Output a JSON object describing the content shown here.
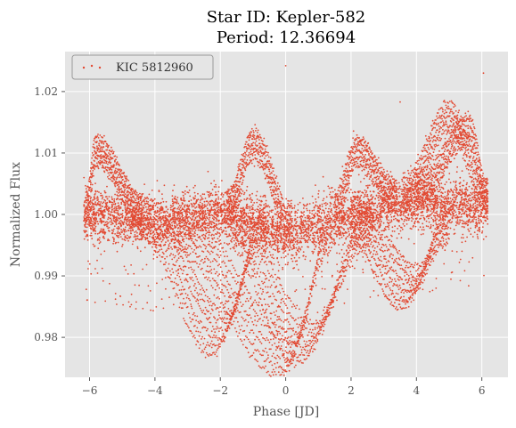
{
  "chart_data": {
    "type": "scatter",
    "title_line1": "Star ID: Kepler-582",
    "title_line2": "Period: 12.36694",
    "xlabel": "Phase [JD]",
    "ylabel": "Normalized Flux",
    "xlim": [
      -6.75,
      6.8
    ],
    "ylim": [
      0.9735,
      1.0265
    ],
    "xticks": [
      -6,
      -4,
      -2,
      0,
      2,
      4,
      6
    ],
    "yticks": [
      0.98,
      0.99,
      1.0,
      1.01,
      1.02
    ],
    "xtick_labels": [
      "−6",
      "−4",
      "−2",
      "0",
      "2",
      "4",
      "6"
    ],
    "ytick_labels": [
      "0.98",
      "0.99",
      "1.00",
      "1.01",
      "1.02"
    ],
    "grid": true,
    "legend_position": "top-left",
    "series": [
      {
        "name": "KIC 5812960",
        "color": "#E24A33",
        "marker": "dot",
        "x_range": [
          -6.18,
          6.18
        ],
        "band_center": [
          [
            -6.0,
            1.0
          ],
          [
            -4.0,
            0.9985
          ],
          [
            -2.0,
            1.0
          ],
          [
            -1.0,
            0.9985
          ],
          [
            0.0,
            0.9965
          ],
          [
            1.0,
            0.998
          ],
          [
            2.0,
            1.0
          ],
          [
            4.0,
            1.002
          ],
          [
            6.0,
            1.001
          ]
        ],
        "band_halfwidth_typical": 0.004,
        "notable_points": [
          {
            "x": 0.0,
            "y": 1.0242
          },
          {
            "x": 6.05,
            "y": 1.023
          },
          {
            "x": 3.5,
            "y": 1.0183
          },
          {
            "x": -6.1,
            "y": 0.9878
          },
          {
            "x": 4.6,
            "y": 0.988
          },
          {
            "x": 0.05,
            "y": 0.9762
          }
        ],
        "dip_trails": [
          {
            "x_start": -4.4,
            "x_end": -0.6,
            "y_start": 0.9995,
            "y_min": 0.9805,
            "x_min": -2.0
          },
          {
            "x_start": -3.4,
            "x_end": 1.4,
            "y_start": 0.9975,
            "y_min": 0.977,
            "x_min": 0.1
          },
          {
            "x_start": -1.8,
            "x_end": 2.6,
            "y_start": 0.9985,
            "y_min": 0.979,
            "x_min": 0.6
          },
          {
            "x_start": 2.0,
            "x_end": 5.0,
            "y_start": 0.999,
            "y_min": 0.988,
            "x_min": 3.8
          }
        ],
        "bump_trails": [
          {
            "x_start": -6.1,
            "x_end": -4.4,
            "y_peak": 1.0125,
            "x_peak": -5.8
          },
          {
            "x_start": -1.8,
            "x_end": 0.2,
            "y_peak": 1.0135,
            "x_peak": -1.0
          },
          {
            "x_start": 1.5,
            "x_end": 3.4,
            "y_peak": 1.0125,
            "x_peak": 2.2
          },
          {
            "x_start": 3.6,
            "x_end": 6.18,
            "y_peak": 1.018,
            "x_peak": 5.0
          },
          {
            "x_start": 4.0,
            "x_end": 6.18,
            "y_peak": 1.016,
            "x_peak": 5.6
          }
        ]
      }
    ]
  }
}
